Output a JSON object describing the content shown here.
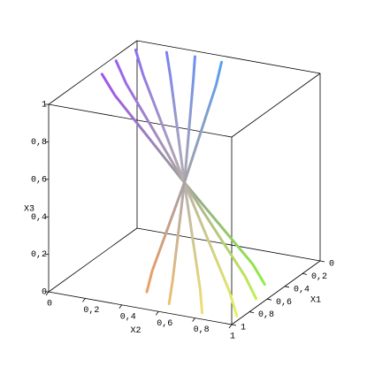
{
  "chart_data": {
    "type": "line3d",
    "x1label": "X1",
    "x2label": "X2",
    "x3label": "X3",
    "x1lim": [
      0,
      1
    ],
    "x2lim": [
      0,
      1
    ],
    "x3lim": [
      0,
      1
    ],
    "x1ticks": [
      0,
      {
        "value": 0.2,
        "label": "0,2"
      },
      {
        "value": 0.4,
        "label": "0,4"
      },
      {
        "value": 0.6,
        "label": "0,6"
      },
      {
        "value": 0.8,
        "label": "0,8"
      },
      1
    ],
    "x2ticks": [
      0,
      {
        "value": 0.2,
        "label": "0,2"
      },
      {
        "value": 0.4,
        "label": "0,4"
      },
      {
        "value": 0.6,
        "label": "0,6"
      },
      {
        "value": 0.8,
        "label": "0,8"
      },
      1
    ],
    "x3ticks": [
      0,
      {
        "value": 0.2,
        "label": "0,2"
      },
      {
        "value": 0.4,
        "label": "0,4"
      },
      {
        "value": 0.6,
        "label": "0,6"
      },
      {
        "value": 0.8,
        "label": "0,8"
      },
      1
    ],
    "series": [
      {
        "colors": [
          "#a050f0",
          "#90f040"
        ],
        "x1": [
          0.5,
          0.5,
          0.5,
          0.43,
          0.42
        ],
        "x2": [
          0.05,
          0.12,
          0.5,
          0.84,
          0.9
        ],
        "x3": [
          1,
          0.9,
          0.5,
          0.1,
          0
        ]
      },
      {
        "colors": [
          "#9a60f0",
          "#c0f050"
        ],
        "x1": [
          0.3,
          0.33,
          0.5,
          0.6,
          0.62
        ],
        "x2": [
          0.03,
          0.1,
          0.5,
          0.88,
          0.95
        ],
        "x3": [
          1,
          0.9,
          0.5,
          0.1,
          0
        ]
      },
      {
        "colors": [
          "#8a70f0",
          "#e8f060"
        ],
        "x1": [
          0.12,
          0.18,
          0.5,
          0.82,
          0.88
        ],
        "x2": [
          0.05,
          0.12,
          0.5,
          0.9,
          0.97
        ],
        "x3": [
          1,
          0.9,
          0.5,
          0.1,
          0
        ]
      },
      {
        "colors": [
          "#7a80f0",
          "#f0e070"
        ],
        "x1": [
          0.08,
          0.14,
          0.5,
          0.86,
          0.92
        ],
        "x2": [
          0.2,
          0.25,
          0.5,
          0.76,
          0.8
        ],
        "x3": [
          1,
          0.9,
          0.5,
          0.1,
          0
        ]
      },
      {
        "colors": [
          "#6a90f0",
          "#f0c070"
        ],
        "x1": [
          0.07,
          0.13,
          0.5,
          0.82,
          0.88
        ],
        "x2": [
          0.35,
          0.37,
          0.5,
          0.59,
          0.6
        ],
        "x3": [
          1,
          0.9,
          0.5,
          0.1,
          0
        ]
      },
      {
        "colors": [
          "#5aa0f0",
          "#f0a060"
        ],
        "x1": [
          0.08,
          0.14,
          0.5,
          0.74,
          0.78
        ],
        "x2": [
          0.5,
          0.5,
          0.5,
          0.44,
          0.43
        ],
        "x3": [
          1,
          0.9,
          0.5,
          0.1,
          0
        ]
      }
    ]
  }
}
